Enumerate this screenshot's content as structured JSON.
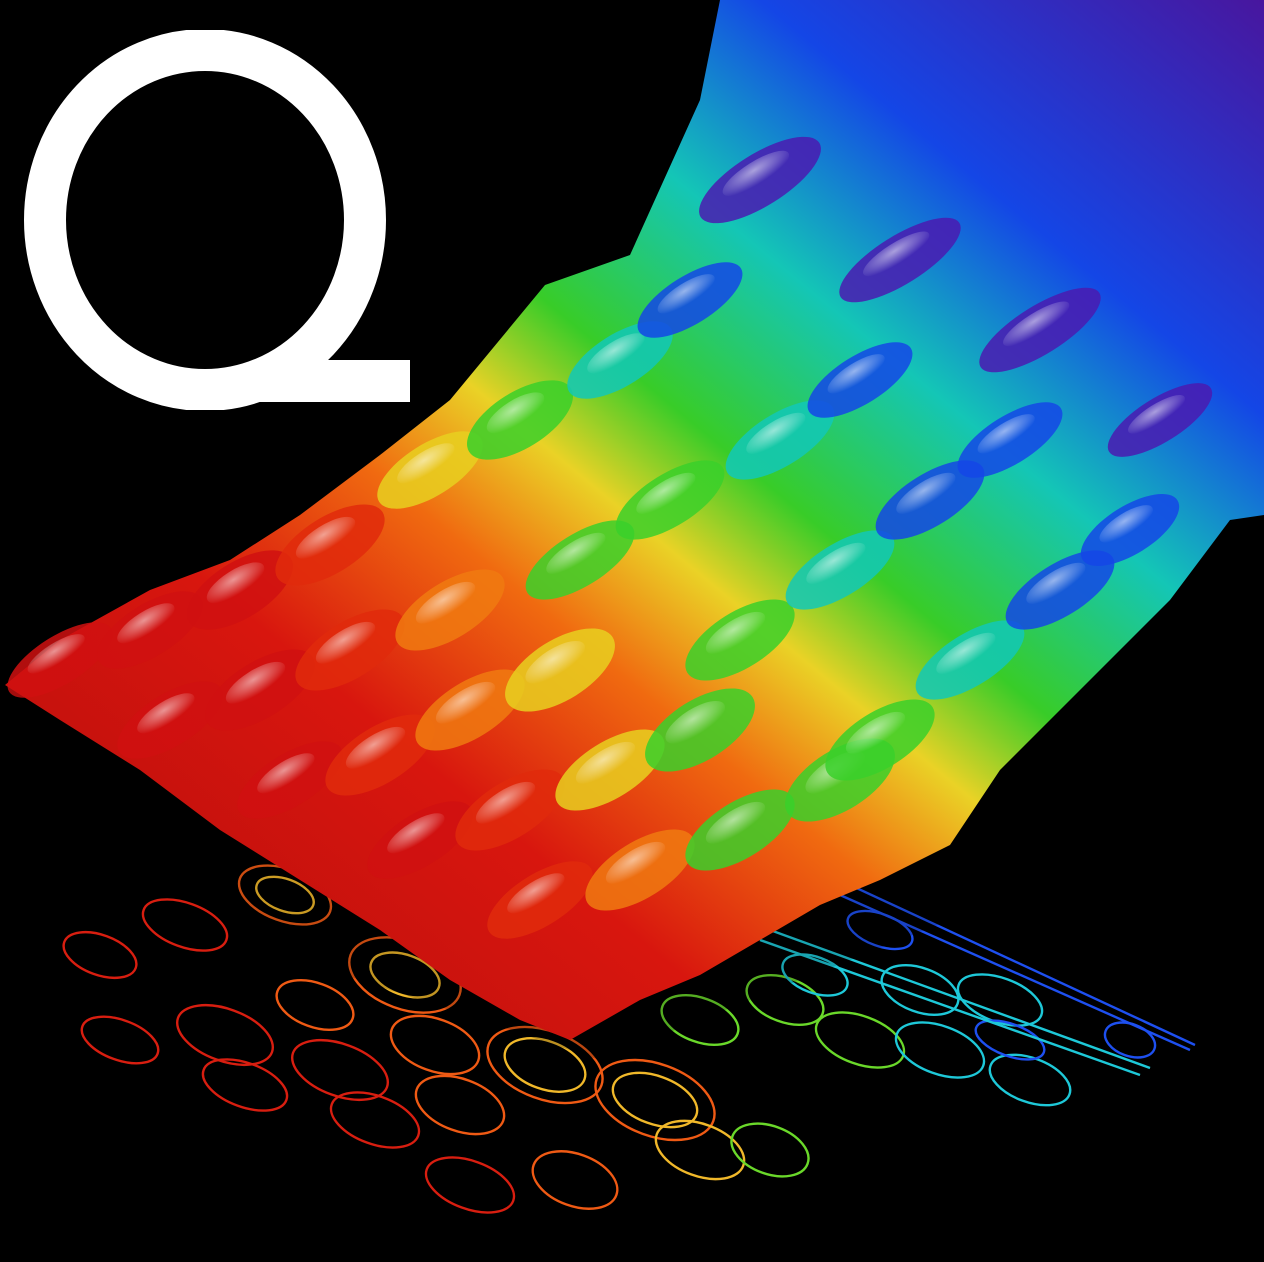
{
  "logo": {
    "letter": "Q",
    "color": "#ffffff"
  },
  "visualization": {
    "subject": "3d-wave-surface-with-contour-projection",
    "background": "#000000",
    "band_colors": [
      "#d01010",
      "#e02a0c",
      "#f07a10",
      "#e8d020",
      "#3ad02a",
      "#12c8b8",
      "#1446e6",
      "#4a1ab0"
    ],
    "contour_colors": [
      "#d81e10",
      "#ef5a14",
      "#f0b82a",
      "#6ad82a",
      "#1ec8d8",
      "#1e50f0"
    ]
  }
}
